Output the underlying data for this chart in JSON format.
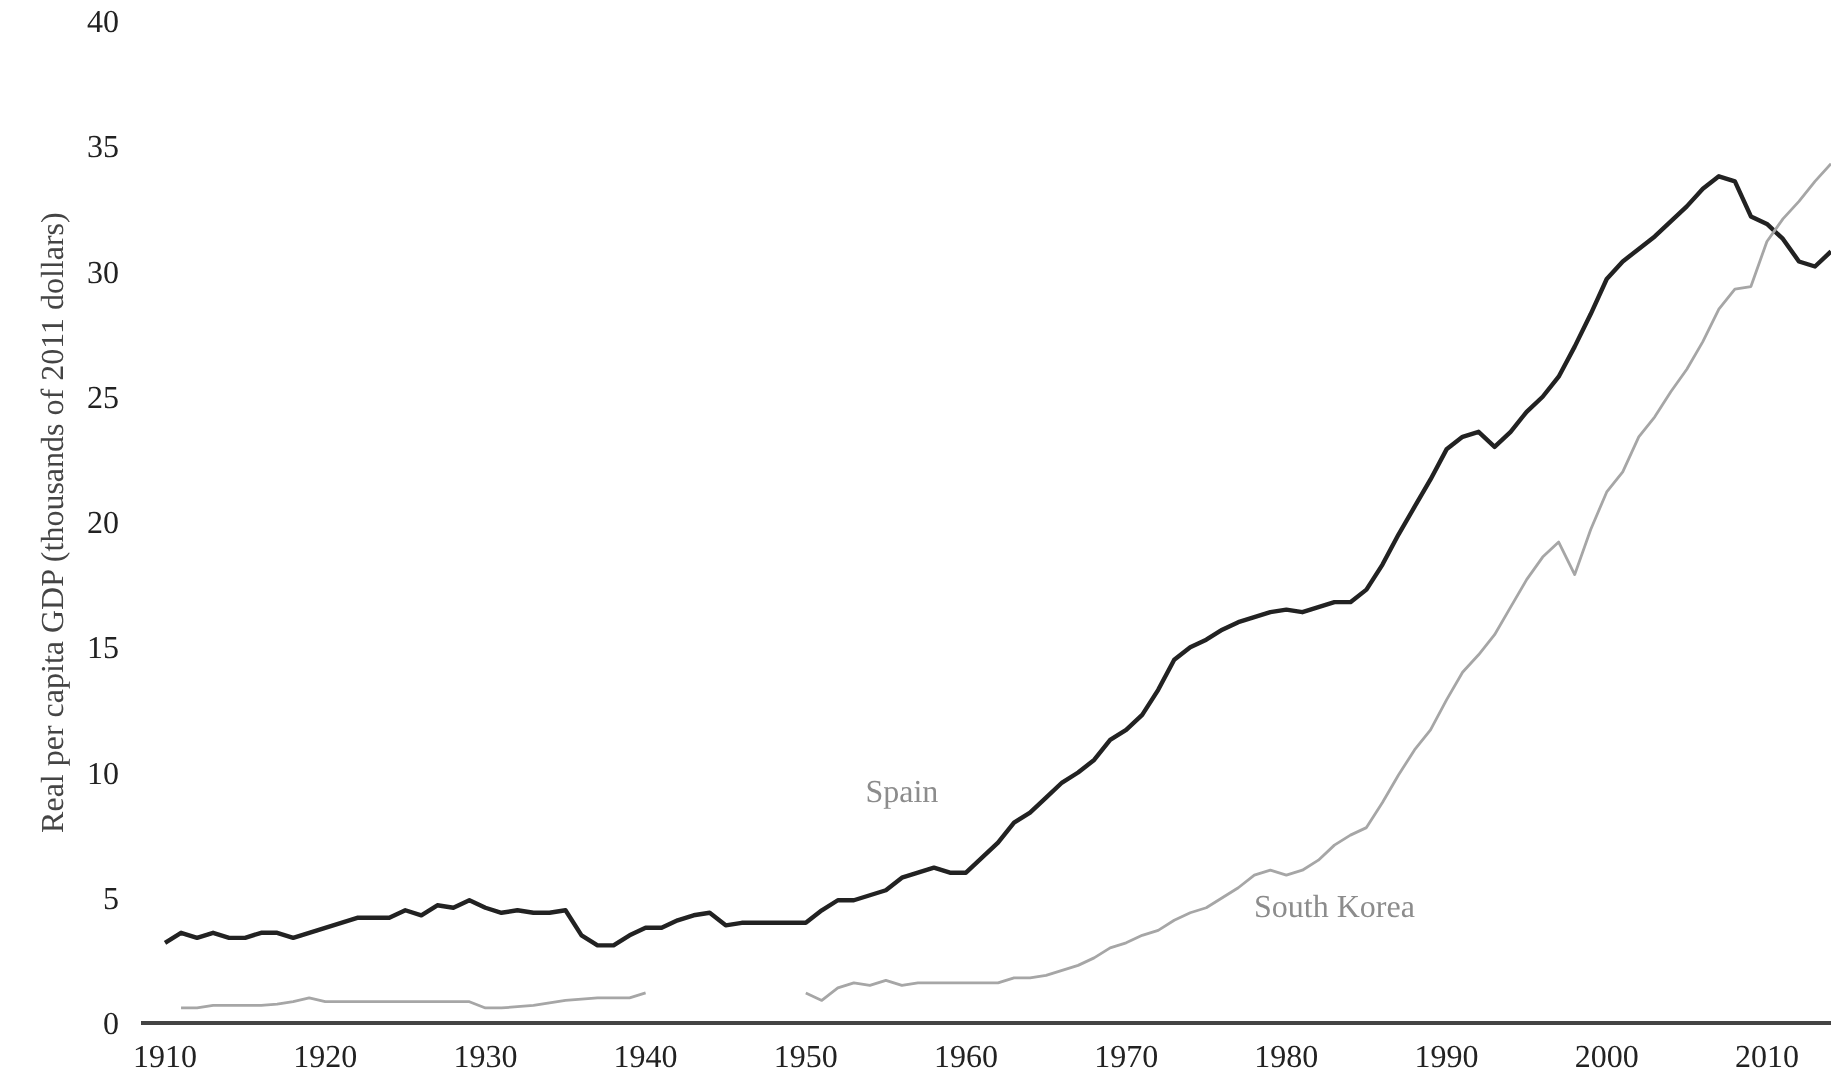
{
  "chart_data": {
    "type": "line",
    "ylabel": "Real per capita GDP (thousands of 2011 dollars)",
    "x": [
      1910,
      1911,
      1912,
      1913,
      1914,
      1915,
      1916,
      1917,
      1918,
      1919,
      1920,
      1921,
      1922,
      1923,
      1924,
      1925,
      1926,
      1927,
      1928,
      1929,
      1930,
      1931,
      1932,
      1933,
      1934,
      1935,
      1936,
      1937,
      1938,
      1939,
      1940,
      1941,
      1942,
      1943,
      1944,
      1945,
      1946,
      1947,
      1948,
      1949,
      1950,
      1951,
      1952,
      1953,
      1954,
      1955,
      1956,
      1957,
      1958,
      1959,
      1960,
      1961,
      1962,
      1963,
      1964,
      1965,
      1966,
      1967,
      1968,
      1969,
      1970,
      1971,
      1972,
      1973,
      1974,
      1975,
      1976,
      1977,
      1978,
      1979,
      1980,
      1981,
      1982,
      1983,
      1984,
      1985,
      1986,
      1987,
      1988,
      1989,
      1990,
      1991,
      1992,
      1993,
      1994,
      1995,
      1996,
      1997,
      1998,
      1999,
      2000,
      2001,
      2002,
      2003,
      2004,
      2005,
      2006,
      2007,
      2008,
      2009,
      2010,
      2011,
      2012,
      2013,
      2014
    ],
    "series": [
      {
        "name": "Spain",
        "color": "#222222",
        "values": [
          3.2,
          3.6,
          3.4,
          3.6,
          3.4,
          3.4,
          3.6,
          3.6,
          3.4,
          3.6,
          3.8,
          4.0,
          4.2,
          4.2,
          4.2,
          4.5,
          4.3,
          4.7,
          4.6,
          4.9,
          4.6,
          4.4,
          4.5,
          4.4,
          4.4,
          4.5,
          3.5,
          3.1,
          3.1,
          3.5,
          3.8,
          3.8,
          4.1,
          4.3,
          4.4,
          3.9,
          4.0,
          4.0,
          4.0,
          4.0,
          4.0,
          4.5,
          4.9,
          4.9,
          5.1,
          5.3,
          5.8,
          6.0,
          6.2,
          6.0,
          6.0,
          6.6,
          7.2,
          8.0,
          8.4,
          9.0,
          9.6,
          10.0,
          10.5,
          11.3,
          11.7,
          12.3,
          13.3,
          14.5,
          15.0,
          15.3,
          15.7,
          16.0,
          16.2,
          16.4,
          16.5,
          16.4,
          16.6,
          16.8,
          16.8,
          17.3,
          18.3,
          19.5,
          20.6,
          21.7,
          22.9,
          23.4,
          23.6,
          23.0,
          23.6,
          24.4,
          25.0,
          25.8,
          27.0,
          28.3,
          29.7,
          30.4,
          30.9,
          31.4,
          32.0,
          32.6,
          33.3,
          33.8,
          33.6,
          32.2,
          31.9,
          31.3,
          30.4,
          30.2,
          30.8
        ]
      },
      {
        "name": "South Korea",
        "color": "#a6a6a6",
        "values": [
          null,
          0.6,
          0.6,
          0.7,
          0.7,
          0.7,
          0.7,
          0.75,
          0.85,
          1.0,
          0.85,
          0.85,
          0.85,
          0.85,
          0.85,
          0.85,
          0.85,
          0.85,
          0.85,
          0.85,
          0.6,
          0.6,
          0.65,
          0.7,
          0.8,
          0.9,
          0.95,
          1.0,
          1.0,
          1.0,
          1.2,
          null,
          null,
          null,
          null,
          null,
          null,
          null,
          null,
          null,
          1.2,
          0.9,
          1.4,
          1.6,
          1.5,
          1.7,
          1.5,
          1.6,
          1.6,
          1.6,
          1.6,
          1.6,
          1.6,
          1.8,
          1.8,
          1.9,
          2.1,
          2.3,
          2.6,
          3.0,
          3.2,
          3.5,
          3.7,
          4.1,
          4.4,
          4.6,
          5.0,
          5.4,
          5.9,
          6.1,
          5.9,
          6.1,
          6.5,
          7.1,
          7.5,
          7.8,
          8.8,
          9.9,
          10.9,
          11.7,
          12.9,
          14.0,
          14.7,
          15.5,
          16.6,
          17.7,
          18.6,
          19.2,
          17.9,
          19.7,
          21.2,
          22.0,
          23.4,
          24.2,
          25.2,
          26.1,
          27.2,
          28.5,
          29.3,
          29.4,
          31.2,
          32.1,
          32.8,
          33.6,
          34.3
        ]
      }
    ],
    "xlim": [
      1908.5,
      2014
    ],
    "ylim": [
      0,
      40
    ],
    "xticks": [
      1910,
      1920,
      1930,
      1940,
      1950,
      1960,
      1970,
      1980,
      1990,
      2000,
      2010
    ],
    "yticks": [
      0,
      5,
      10,
      15,
      20,
      25,
      30,
      35,
      40
    ],
    "grid": false,
    "legend": false
  }
}
